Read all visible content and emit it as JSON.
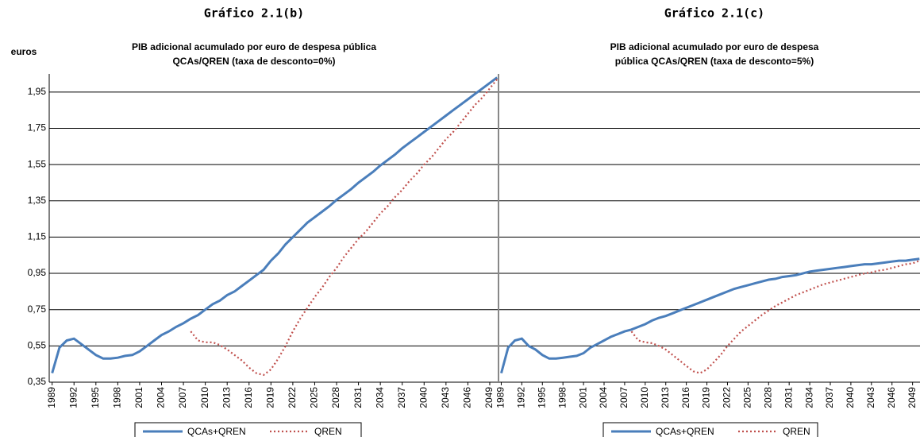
{
  "chart_data": [
    {
      "type": "line",
      "title": "Gráfico 2.1(b)",
      "subtitle": [
        "PIB adicional acumulado por euro de despesa pública",
        "QCAs/QREN (taxa de desconto=0%)"
      ],
      "ylabel": "euros",
      "x": [
        1989,
        1990,
        1991,
        1992,
        1993,
        1994,
        1995,
        1996,
        1997,
        1998,
        1999,
        2000,
        2001,
        2002,
        2003,
        2004,
        2005,
        2006,
        2007,
        2008,
        2009,
        2010,
        2011,
        2012,
        2013,
        2014,
        2015,
        2016,
        2017,
        2018,
        2019,
        2020,
        2021,
        2022,
        2023,
        2024,
        2025,
        2026,
        2027,
        2028,
        2029,
        2030,
        2031,
        2032,
        2033,
        2034,
        2035,
        2036,
        2037,
        2038,
        2039,
        2040,
        2041,
        2042,
        2043,
        2044,
        2045,
        2046,
        2047,
        2048,
        2049,
        2050
      ],
      "xlim": [
        1988.6,
        2050.2
      ],
      "xticks": [
        1989,
        1992,
        1995,
        1998,
        2001,
        2004,
        2007,
        2010,
        2013,
        2016,
        2019,
        2022,
        2025,
        2028,
        2031,
        2034,
        2037,
        2040,
        2043,
        2046,
        2049
      ],
      "ylim": [
        0.35,
        2.05
      ],
      "yticks": [
        {
          "value": 0.35,
          "label": "0,35"
        },
        {
          "value": 0.55,
          "label": "0,55"
        },
        {
          "value": 0.75,
          "label": "0,75"
        },
        {
          "value": 0.95,
          "label": "0,95"
        },
        {
          "value": 1.15,
          "label": "1,15"
        },
        {
          "value": 1.35,
          "label": "1,35"
        },
        {
          "value": 1.55,
          "label": "1,55"
        },
        {
          "value": 1.75,
          "label": "1,75"
        },
        {
          "value": 1.95,
          "label": "1,95"
        }
      ],
      "grid": true,
      "series": [
        {
          "name": "QCAs+QREN",
          "color": "#4a7ebb",
          "style": "solid",
          "values": [
            0.4,
            0.54,
            0.58,
            0.59,
            0.56,
            0.53,
            0.5,
            0.48,
            0.48,
            0.485,
            0.495,
            0.5,
            0.52,
            0.55,
            0.58,
            0.61,
            0.63,
            0.655,
            0.675,
            0.7,
            0.72,
            0.75,
            0.78,
            0.8,
            0.83,
            0.85,
            0.88,
            0.91,
            0.94,
            0.97,
            1.02,
            1.06,
            1.11,
            1.15,
            1.19,
            1.23,
            1.26,
            1.29,
            1.32,
            1.355,
            1.385,
            1.415,
            1.45,
            1.48,
            1.51,
            1.545,
            1.575,
            1.605,
            1.64,
            1.67,
            1.7,
            1.73,
            1.76,
            1.79,
            1.82,
            1.85,
            1.88,
            1.91,
            1.94,
            1.97,
            2.0,
            2.03
          ]
        },
        {
          "name": "QREN",
          "color": "#c0504d",
          "style": "dotted",
          "values": [
            null,
            null,
            null,
            null,
            null,
            null,
            null,
            null,
            null,
            null,
            null,
            null,
            null,
            null,
            null,
            null,
            null,
            null,
            null,
            0.63,
            0.58,
            0.57,
            0.57,
            0.555,
            0.53,
            0.5,
            0.47,
            0.43,
            0.4,
            0.39,
            0.42,
            0.48,
            0.55,
            0.63,
            0.7,
            0.76,
            0.82,
            0.87,
            0.93,
            0.98,
            1.04,
            1.09,
            1.14,
            1.18,
            1.23,
            1.28,
            1.32,
            1.37,
            1.41,
            1.46,
            1.5,
            1.55,
            1.59,
            1.64,
            1.69,
            1.73,
            1.78,
            1.83,
            1.88,
            1.92,
            1.97,
            2.02
          ]
        }
      ]
    },
    {
      "type": "line",
      "title": "Gráfico 2.1(c)",
      "subtitle": [
        "PIB adicional acumulado por euro de despesa",
        "pública QCAs/QREN (taxa de desconto=5%)"
      ],
      "x": [
        1989,
        1990,
        1991,
        1992,
        1993,
        1994,
        1995,
        1996,
        1997,
        1998,
        1999,
        2000,
        2001,
        2002,
        2003,
        2004,
        2005,
        2006,
        2007,
        2008,
        2009,
        2010,
        2011,
        2012,
        2013,
        2014,
        2015,
        2016,
        2017,
        2018,
        2019,
        2020,
        2021,
        2022,
        2023,
        2024,
        2025,
        2026,
        2027,
        2028,
        2029,
        2030,
        2031,
        2032,
        2033,
        2034,
        2035,
        2036,
        2037,
        2038,
        2039,
        2040,
        2041,
        2042,
        2043,
        2044,
        2045,
        2046,
        2047,
        2048,
        2049,
        2050
      ],
      "xlim": [
        1988.6,
        2050.2
      ],
      "xticks": [
        1989,
        1992,
        1995,
        1998,
        2001,
        2004,
        2007,
        2010,
        2013,
        2016,
        2019,
        2022,
        2025,
        2028,
        2031,
        2034,
        2037,
        2040,
        2043,
        2046,
        2049
      ],
      "ylim": [
        0.35,
        2.05
      ],
      "yticks": [
        0.35,
        0.55,
        0.75,
        0.95,
        1.15,
        1.35,
        1.55,
        1.75,
        1.95
      ],
      "grid": true,
      "series": [
        {
          "name": "QCAs+QREN",
          "color": "#4a7ebb",
          "style": "solid",
          "values": [
            0.4,
            0.54,
            0.58,
            0.59,
            0.55,
            0.53,
            0.5,
            0.48,
            0.48,
            0.485,
            0.49,
            0.495,
            0.51,
            0.54,
            0.56,
            0.58,
            0.6,
            0.615,
            0.63,
            0.64,
            0.655,
            0.67,
            0.69,
            0.705,
            0.715,
            0.73,
            0.745,
            0.76,
            0.775,
            0.79,
            0.805,
            0.82,
            0.835,
            0.85,
            0.865,
            0.875,
            0.885,
            0.895,
            0.905,
            0.915,
            0.92,
            0.93,
            0.935,
            0.94,
            0.95,
            0.96,
            0.965,
            0.97,
            0.975,
            0.98,
            0.985,
            0.99,
            0.995,
            1.0,
            1.0,
            1.005,
            1.01,
            1.015,
            1.02,
            1.02,
            1.025,
            1.03
          ]
        },
        {
          "name": "QREN",
          "color": "#c0504d",
          "style": "dotted",
          "values": [
            null,
            null,
            null,
            null,
            null,
            null,
            null,
            null,
            null,
            null,
            null,
            null,
            null,
            null,
            null,
            null,
            null,
            null,
            null,
            0.63,
            0.58,
            0.57,
            0.565,
            0.55,
            0.53,
            0.5,
            0.47,
            0.44,
            0.41,
            0.4,
            0.42,
            0.46,
            0.5,
            0.55,
            0.59,
            0.63,
            0.66,
            0.69,
            0.72,
            0.745,
            0.77,
            0.79,
            0.81,
            0.83,
            0.845,
            0.86,
            0.875,
            0.89,
            0.9,
            0.91,
            0.92,
            0.93,
            0.94,
            0.95,
            0.955,
            0.965,
            0.97,
            0.98,
            0.99,
            1.0,
            1.005,
            1.02
          ]
        }
      ]
    }
  ]
}
